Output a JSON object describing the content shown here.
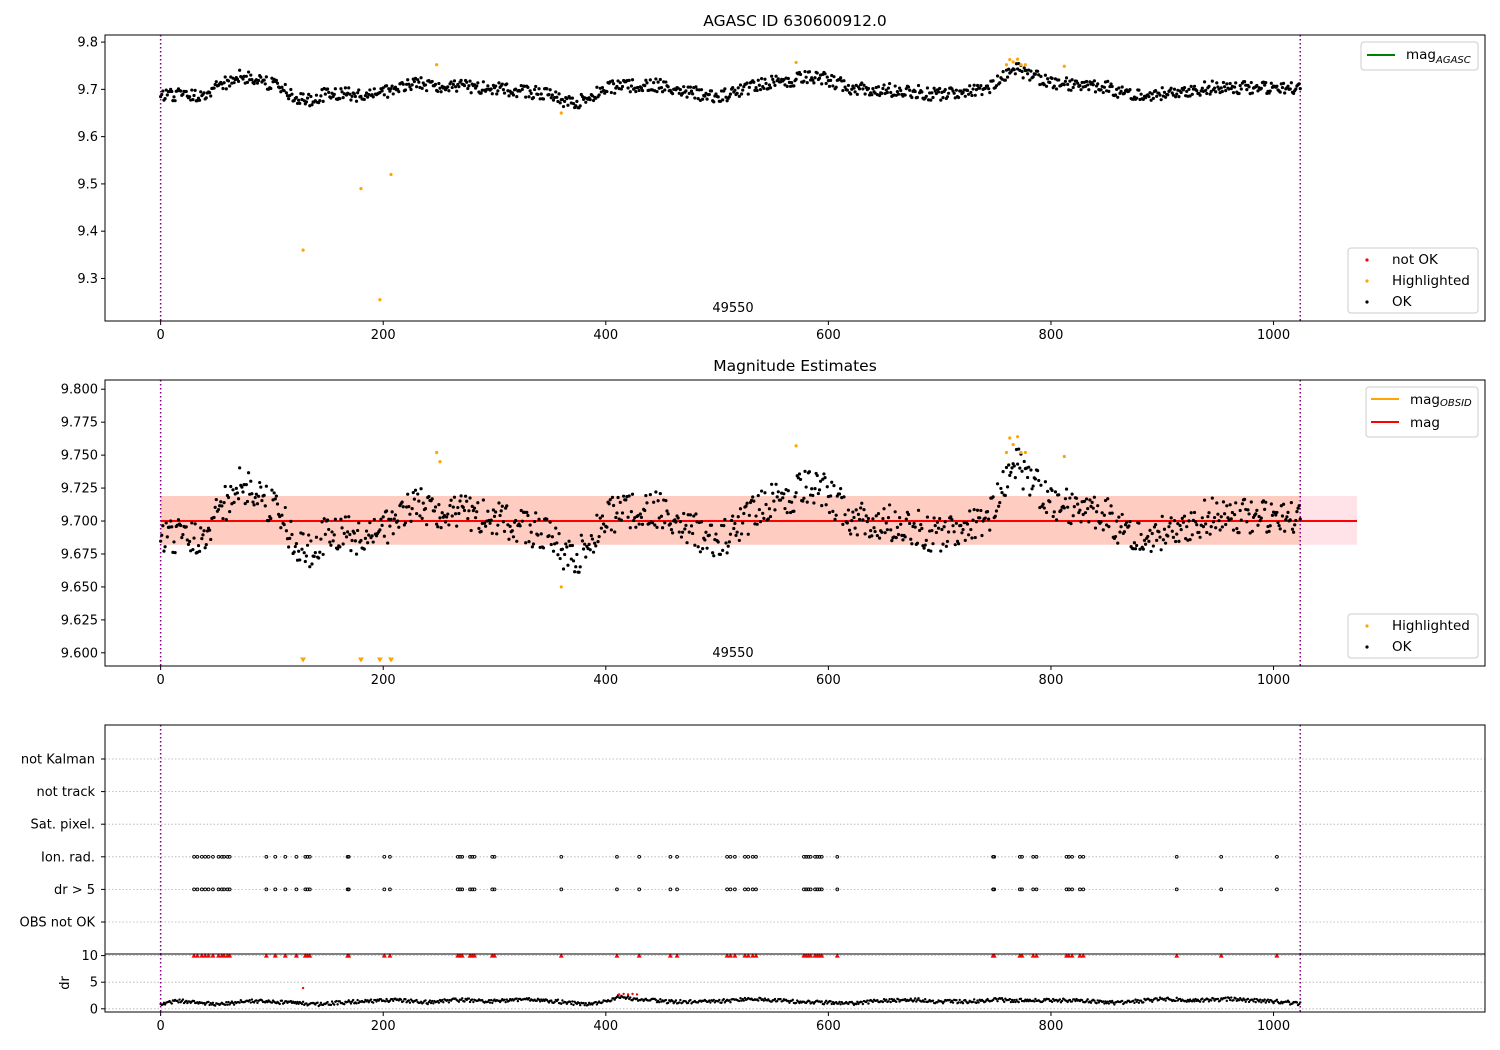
{
  "figure": {
    "colors": {
      "ok": "#000000",
      "highlighted": "#ffa500",
      "not_ok": "#ff0000",
      "mag_agasc": "#008000",
      "mag_obsid": "#ffa500",
      "mag": "#ff0000",
      "obs_band": "#ffc0cb",
      "mag_band": "#ffa07a",
      "bounds_line": "#800080",
      "grid": "#b0b0b0"
    }
  },
  "chart_data": [
    {
      "type": "scatter",
      "title": "AGASC ID 630600912.0",
      "annotation": "49550",
      "xlim": [
        -50,
        1190
      ],
      "ylim": [
        9.21,
        9.815
      ],
      "xticks": [
        "0",
        "200",
        "400",
        "600",
        "800",
        "1000"
      ],
      "yticks": [
        "9.3",
        "9.4",
        "9.5",
        "9.6",
        "9.7",
        "9.8"
      ],
      "vlines": [
        0,
        1024
      ],
      "legend_lines": {
        "entries": [
          {
            "label": "mag",
            "sub": "AGASC",
            "color": "#008000"
          }
        ],
        "position": "top-right"
      },
      "legend_points": {
        "entries": [
          {
            "label": "not OK",
            "color": "#ff0000"
          },
          {
            "label": "Highlighted",
            "color": "#ffa500"
          },
          {
            "label": "OK",
            "color": "#000000"
          }
        ],
        "position": "bottom-right"
      },
      "series": [
        {
          "name": "OK",
          "color": "#000000",
          "n": 1025,
          "xmin": 0,
          "xmax": 1024,
          "baseline": 9.7,
          "trend": [
            [
              0,
              9.685
            ],
            [
              40,
              9.69
            ],
            [
              70,
              9.728
            ],
            [
              100,
              9.712
            ],
            [
              130,
              9.675
            ],
            [
              150,
              9.692
            ],
            [
              190,
              9.687
            ],
            [
              230,
              9.712
            ],
            [
              280,
              9.705
            ],
            [
              350,
              9.69
            ],
            [
              370,
              9.668
            ],
            [
              400,
              9.703
            ],
            [
              440,
              9.712
            ],
            [
              500,
              9.682
            ],
            [
              540,
              9.712
            ],
            [
              590,
              9.728
            ],
            [
              620,
              9.704
            ],
            [
              680,
              9.695
            ],
            [
              700,
              9.688
            ],
            [
              740,
              9.698
            ],
            [
              770,
              9.743
            ],
            [
              800,
              9.713
            ],
            [
              850,
              9.706
            ],
            [
              870,
              9.687
            ],
            [
              900,
              9.692
            ],
            [
              950,
              9.705
            ],
            [
              1000,
              9.702
            ],
            [
              1024,
              9.7
            ]
          ]
        },
        {
          "name": "Highlighted",
          "color": "#ffa500",
          "points": [
            [
              128,
              9.36
            ],
            [
              180,
              9.49
            ],
            [
              197,
              9.255
            ],
            [
              207,
              9.52
            ],
            [
              248,
              9.752
            ],
            [
              360,
              9.65
            ],
            [
              571,
              9.757
            ],
            [
              760,
              9.752
            ],
            [
              763,
              9.763
            ],
            [
              766,
              9.758
            ],
            [
              770,
              9.764
            ],
            [
              773,
              9.752
            ],
            [
              777,
              9.752
            ],
            [
              812,
              9.749
            ]
          ]
        },
        {
          "name": "not OK",
          "color": "#ff0000",
          "points": []
        }
      ]
    },
    {
      "type": "scatter",
      "title": "Magnitude Estimates",
      "annotation": "49550",
      "xlim": [
        -50,
        1190
      ],
      "ylim": [
        9.59,
        9.807
      ],
      "xticks": [
        "0",
        "200",
        "400",
        "600",
        "800",
        "1000"
      ],
      "yticks": [
        "9.600",
        "9.625",
        "9.650",
        "9.675",
        "9.700",
        "9.725",
        "9.750",
        "9.775",
        "9.800"
      ],
      "vlines": [
        0,
        1024
      ],
      "mag_obsid": {
        "value": 9.7,
        "band": [
          9.682,
          9.719
        ],
        "x": [
          0,
          1075
        ]
      },
      "mag": {
        "value": 9.7,
        "band": [
          9.682,
          9.719
        ],
        "x": [
          0,
          1075
        ]
      },
      "legend_lines": {
        "entries": [
          {
            "label": "mag",
            "sub": "OBSID",
            "color": "#ffa500"
          },
          {
            "label": "mag",
            "sub": "",
            "color": "#ff0000"
          }
        ],
        "position": "top-right"
      },
      "legend_points": {
        "entries": [
          {
            "label": "Highlighted",
            "color": "#ffa500"
          },
          {
            "label": "OK",
            "color": "#000000"
          }
        ],
        "position": "bottom-right"
      },
      "series": [
        {
          "name": "OK",
          "color": "#000000",
          "n": 1025,
          "xmin": 0,
          "xmax": 1024,
          "same_as": "chart_data.0.series.0"
        },
        {
          "name": "Highlighted",
          "color": "#ffa500",
          "points": [
            [
              248,
              9.752
            ],
            [
              251,
              9.745
            ],
            [
              360,
              9.65
            ],
            [
              571,
              9.757
            ],
            [
              760,
              9.752
            ],
            [
              763,
              9.763
            ],
            [
              766,
              9.758
            ],
            [
              770,
              9.764
            ],
            [
              773,
              9.752
            ],
            [
              777,
              9.752
            ],
            [
              812,
              9.749
            ]
          ],
          "below_range": [
            128,
            180,
            197,
            207
          ]
        }
      ]
    },
    {
      "type": "scatter",
      "xlim": [
        -50,
        1190
      ],
      "xticks": [
        "0",
        "200",
        "400",
        "600",
        "800",
        "1000"
      ],
      "vlines": [
        0,
        1024
      ],
      "flag_rows": [
        "not Kalman",
        "not track",
        "Sat. pixel.",
        "Ion. rad.",
        "dr > 5",
        "OBS not OK"
      ],
      "flags": {
        "not Kalman": [],
        "not track": [],
        "Sat. pixel.": [],
        "Ion. rad.": [
          30,
          33,
          37,
          40,
          43,
          47,
          52,
          55,
          57,
          60,
          62,
          95,
          103,
          112,
          122,
          130,
          132,
          134,
          168,
          169,
          201,
          206,
          267,
          269,
          271,
          278,
          280,
          282,
          298,
          300,
          360,
          410,
          430,
          458,
          464,
          509,
          512,
          516,
          525,
          528,
          532,
          535,
          578,
          580,
          582,
          584,
          588,
          590,
          592,
          594,
          608,
          748,
          749,
          772,
          774,
          784,
          787,
          814,
          816,
          819,
          826,
          829,
          913,
          953,
          1003
        ],
        "dr > 5": [
          30,
          33,
          37,
          40,
          43,
          47,
          52,
          55,
          57,
          60,
          62,
          95,
          103,
          112,
          122,
          130,
          132,
          134,
          168,
          169,
          201,
          206,
          267,
          269,
          271,
          278,
          280,
          282,
          298,
          300,
          360,
          410,
          430,
          458,
          464,
          509,
          512,
          516,
          525,
          528,
          532,
          535,
          578,
          580,
          582,
          584,
          588,
          590,
          592,
          594,
          608,
          748,
          749,
          772,
          774,
          784,
          787,
          814,
          816,
          819,
          826,
          829,
          913,
          953,
          1003
        ],
        "OBS not OK": []
      }
    },
    {
      "type": "scatter",
      "ylabel": "dr",
      "xlim": [
        -50,
        1190
      ],
      "ylim": [
        -0.6,
        10.3
      ],
      "xticks": [
        "0",
        "200",
        "400",
        "600",
        "800",
        "1000"
      ],
      "yticks": [
        "0",
        "5",
        "10"
      ],
      "vlines": [
        0,
        1024
      ],
      "clip_value": 10,
      "series": [
        {
          "name": "OK",
          "color": "#000000",
          "n": 1025,
          "xmin": 0,
          "xmax": 1024,
          "trend": [
            [
              0,
              0.9
            ],
            [
              15,
              1.5
            ],
            [
              30,
              1.3
            ],
            [
              55,
              0.8
            ],
            [
              80,
              1.5
            ],
            [
              110,
              1.2
            ],
            [
              140,
              0.8
            ],
            [
              170,
              1.3
            ],
            [
              210,
              1.6
            ],
            [
              240,
              1.2
            ],
            [
              270,
              1.7
            ],
            [
              300,
              1.4
            ],
            [
              330,
              1.9
            ],
            [
              360,
              1.3
            ],
            [
              380,
              0.9
            ],
            [
              400,
              1.3
            ],
            [
              410,
              2.2
            ],
            [
              430,
              1.8
            ],
            [
              460,
              1.3
            ],
            [
              500,
              1.4
            ],
            [
              530,
              1.8
            ],
            [
              560,
              1.5
            ],
            [
              590,
              1.2
            ],
            [
              620,
              1.0
            ],
            [
              650,
              1.5
            ],
            [
              680,
              1.7
            ],
            [
              700,
              1.3
            ],
            [
              730,
              1.4
            ],
            [
              750,
              1.7
            ],
            [
              780,
              1.5
            ],
            [
              820,
              1.6
            ],
            [
              860,
              1.1
            ],
            [
              900,
              1.8
            ],
            [
              930,
              1.6
            ],
            [
              960,
              1.8
            ],
            [
              1000,
              1.4
            ],
            [
              1024,
              1.0
            ]
          ]
        },
        {
          "name": "Highlighted",
          "color": "#ffa500",
          "points": []
        },
        {
          "name": "not OK",
          "color": "#ff0000",
          "points": [
            [
              128,
              3.9
            ],
            [
              412,
              2.7
            ],
            [
              416,
              2.8
            ],
            [
              420,
              2.7
            ],
            [
              424,
              2.8
            ],
            [
              428,
              2.7
            ]
          ],
          "clipped_x": [
            30,
            33,
            37,
            40,
            43,
            47,
            52,
            55,
            57,
            60,
            62,
            95,
            103,
            112,
            122,
            130,
            132,
            134,
            168,
            169,
            201,
            206,
            267,
            269,
            271,
            278,
            280,
            282,
            298,
            300,
            360,
            410,
            430,
            458,
            464,
            509,
            512,
            516,
            525,
            528,
            532,
            535,
            578,
            580,
            582,
            584,
            588,
            590,
            592,
            594,
            608,
            748,
            749,
            772,
            774,
            784,
            787,
            814,
            816,
            819,
            826,
            829,
            913,
            953,
            1003
          ]
        }
      ]
    }
  ]
}
